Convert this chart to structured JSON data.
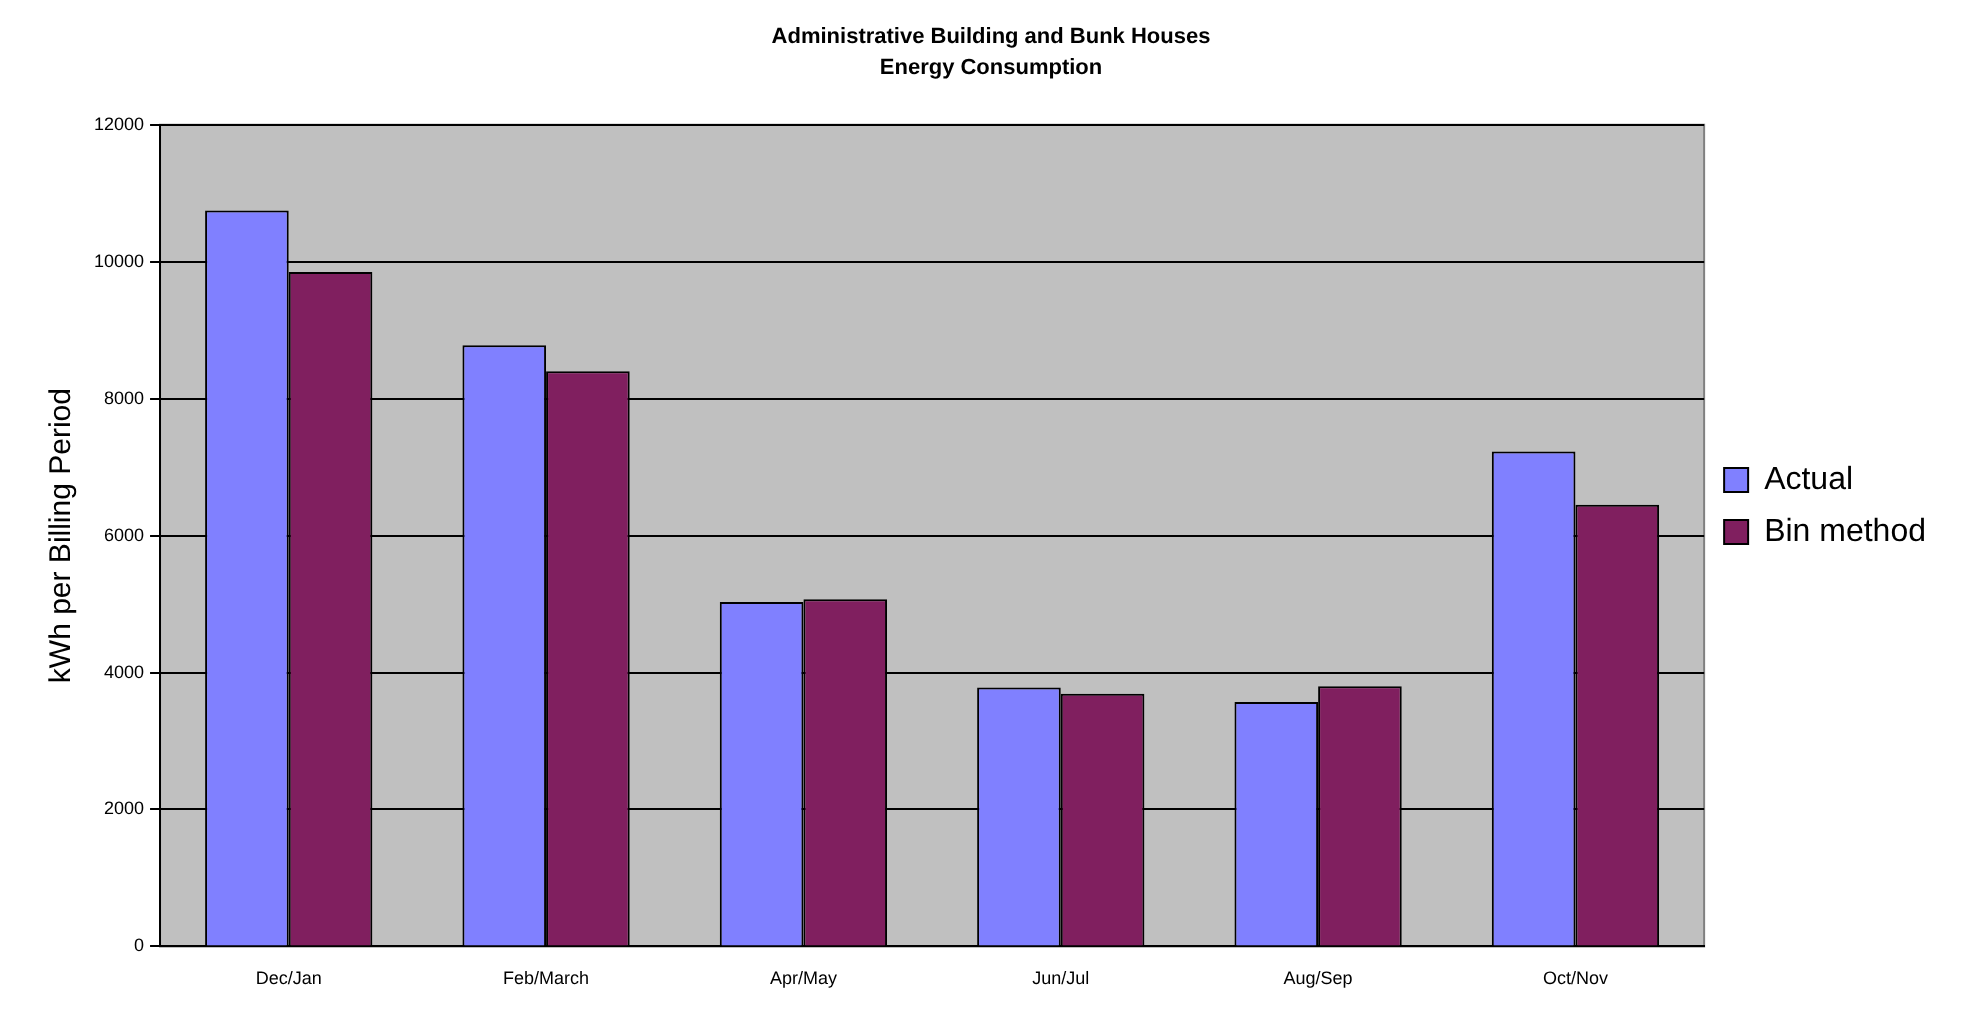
{
  "chart_data": {
    "type": "bar",
    "title": "Administrative Building and Bunk Houses",
    "subtitle": "Energy Consumption",
    "ylabel": "kWh per Billing Period",
    "categories": [
      "Dec/Jan",
      "Feb/March",
      "Apr/May",
      "Jun/Jul",
      "Aug/Sep",
      "Oct/Nov"
    ],
    "series": [
      {
        "name": "Actual",
        "color": "#8080ff",
        "values": [
          10750,
          8780,
          5030,
          3780,
          3570,
          7230
        ]
      },
      {
        "name": "Bin method",
        "color": "#801f5f",
        "values": [
          9850,
          8400,
          5070,
          3690,
          3800,
          6450
        ]
      }
    ],
    "ylim": [
      0,
      12000
    ],
    "yticks": [
      0,
      2000,
      4000,
      6000,
      8000,
      10000,
      12000
    ],
    "grid": "y",
    "legend": "right"
  }
}
